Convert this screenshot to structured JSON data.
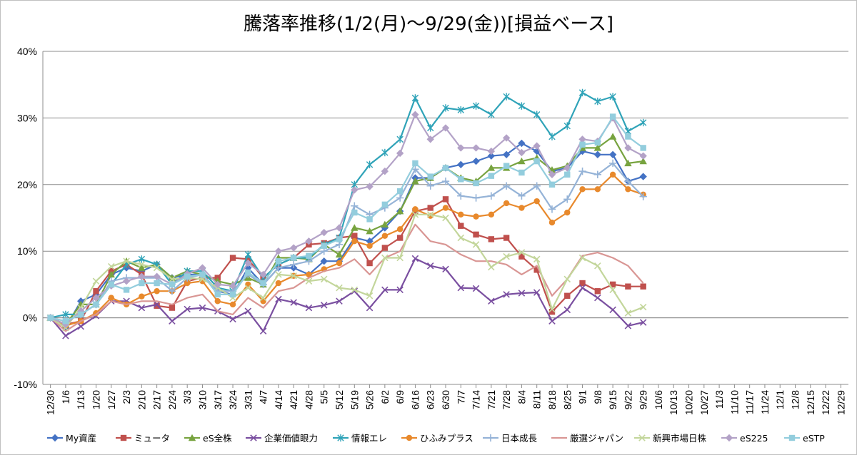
{
  "chart_data": {
    "type": "line",
    "title": "騰落率推移(1/2(月)～9/29(金))[損益ベース]",
    "xlabel": "",
    "ylabel": "",
    "ylim": [
      -0.1,
      0.4
    ],
    "yticks": [
      "40%",
      "30%",
      "20%",
      "10%",
      "0%",
      "-10%"
    ],
    "ytick_values": [
      0.4,
      0.3,
      0.2,
      0.1,
      0.0,
      -0.1
    ],
    "grid": "horizontal",
    "legend_position": "bottom",
    "xtick_labels": [
      "12/30",
      "1/6",
      "1/13",
      "1/20",
      "1/27",
      "2/3",
      "2/10",
      "2/17",
      "2/24",
      "3/3",
      "3/10",
      "3/17",
      "3/24",
      "3/31",
      "4/7",
      "4/14",
      "4/21",
      "4/28",
      "5/5",
      "5/12",
      "5/19",
      "5/26",
      "6/2",
      "6/9",
      "6/16",
      "6/23",
      "6/30",
      "7/7",
      "7/14",
      "7/21",
      "7/28",
      "8/4",
      "8/11",
      "8/18",
      "8/25",
      "9/1",
      "9/8",
      "9/15",
      "9/22",
      "9/29",
      "10/6",
      "10/13",
      "10/20",
      "10/27",
      "11/3",
      "11/10",
      "11/17",
      "11/24",
      "12/1",
      "12/8",
      "12/15",
      "12/22",
      "12/29"
    ],
    "series": [
      {
        "name": "My資産",
        "color": "#4472c4",
        "marker": "diamond",
        "values": [
          0,
          -0.015,
          0.025,
          0.035,
          0.065,
          0.075,
          0.07,
          0.08,
          0.06,
          0.065,
          0.065,
          0.04,
          0.035,
          0.075,
          0.05,
          0.075,
          0.075,
          0.065,
          0.085,
          0.085,
          0.12,
          0.115,
          0.135,
          0.16,
          0.21,
          0.21,
          0.225,
          0.23,
          0.235,
          0.243,
          0.245,
          0.262,
          0.25,
          0.22,
          0.225,
          0.25,
          0.245,
          0.245,
          0.205,
          0.212
        ]
      },
      {
        "name": "ミュータ",
        "color": "#c0504d",
        "marker": "square",
        "values": [
          0,
          -0.01,
          -0.005,
          0.04,
          0.07,
          0.08,
          0.065,
          0.018,
          0.015,
          0.055,
          0.06,
          0.06,
          0.09,
          0.088,
          0.06,
          0.08,
          0.09,
          0.11,
          0.112,
          0.12,
          0.123,
          0.082,
          0.105,
          0.12,
          0.16,
          0.165,
          0.178,
          0.138,
          0.125,
          0.118,
          0.12,
          0.092,
          0.072,
          0.009,
          0.033,
          0.052,
          0.04,
          0.05,
          0.047,
          0.047
        ]
      },
      {
        "name": "eS全株",
        "color": "#77a33f",
        "marker": "triangle",
        "values": [
          0,
          -0.01,
          0.02,
          0.02,
          0.065,
          0.085,
          0.075,
          0.08,
          0.06,
          0.07,
          0.065,
          0.055,
          0.05,
          0.06,
          0.05,
          0.09,
          0.09,
          0.088,
          0.11,
          0.095,
          0.135,
          0.13,
          0.14,
          0.16,
          0.205,
          0.21,
          0.225,
          0.21,
          0.205,
          0.225,
          0.225,
          0.235,
          0.24,
          0.222,
          0.228,
          0.255,
          0.255,
          0.272,
          0.232,
          0.235
        ]
      },
      {
        "name": "企業価値眼力",
        "color": "#7a4fa0",
        "marker": "x",
        "values": [
          0,
          -0.027,
          -0.013,
          0.003,
          0.025,
          0.025,
          0.015,
          0.02,
          -0.005,
          0.013,
          0.015,
          0.01,
          -0.002,
          0.01,
          -0.02,
          0.028,
          0.023,
          0.015,
          0.019,
          0.025,
          0.04,
          0.015,
          0.042,
          0.042,
          0.089,
          0.078,
          0.073,
          0.045,
          0.044,
          0.025,
          0.035,
          0.037,
          0.038,
          -0.005,
          0.012,
          0.045,
          0.03,
          0.012,
          -0.012,
          -0.007
        ]
      },
      {
        "name": "情報エレ",
        "color": "#2fa3b8",
        "marker": "star",
        "values": [
          0,
          0.005,
          0.005,
          0.02,
          0.05,
          0.08,
          0.088,
          0.08,
          0.05,
          0.07,
          0.07,
          0.045,
          0.04,
          0.095,
          0.06,
          0.08,
          0.09,
          0.09,
          0.11,
          0.12,
          0.2,
          0.23,
          0.248,
          0.268,
          0.33,
          0.285,
          0.315,
          0.312,
          0.318,
          0.305,
          0.332,
          0.318,
          0.305,
          0.272,
          0.288,
          0.338,
          0.325,
          0.332,
          0.28,
          0.293
        ]
      },
      {
        "name": "ひふみプラス",
        "color": "#e8892c",
        "marker": "circle",
        "values": [
          0,
          -0.012,
          -0.005,
          0.007,
          0.03,
          0.02,
          0.032,
          0.04,
          0.04,
          0.052,
          0.055,
          0.025,
          0.02,
          0.05,
          0.025,
          0.052,
          0.063,
          0.065,
          0.073,
          0.082,
          0.115,
          0.108,
          0.123,
          0.133,
          0.163,
          0.153,
          0.165,
          0.155,
          0.152,
          0.155,
          0.172,
          0.165,
          0.175,
          0.143,
          0.158,
          0.193,
          0.193,
          0.215,
          0.193,
          0.185
        ]
      },
      {
        "name": "日本成長",
        "color": "#95b3d7",
        "marker": "plus",
        "values": [
          0,
          -0.005,
          0.005,
          0.02,
          0.055,
          0.06,
          0.06,
          0.06,
          0.04,
          0.06,
          0.065,
          0.04,
          0.04,
          0.065,
          0.05,
          0.075,
          0.08,
          0.085,
          0.1,
          0.11,
          0.168,
          0.155,
          0.165,
          0.18,
          0.223,
          0.198,
          0.205,
          0.183,
          0.18,
          0.183,
          0.198,
          0.183,
          0.198,
          0.163,
          0.178,
          0.22,
          0.215,
          0.232,
          0.205,
          0.182
        ]
      },
      {
        "name": "厳選ジャパン",
        "color": "#d99694",
        "marker": "none",
        "values": [
          0,
          -0.02,
          -0.005,
          0.005,
          0.025,
          0.02,
          0.025,
          0.025,
          0.02,
          0.03,
          0.035,
          0.01,
          0.005,
          0.03,
          0.015,
          0.04,
          0.045,
          0.06,
          0.07,
          0.075,
          0.088,
          0.065,
          0.09,
          0.1,
          0.14,
          0.115,
          0.11,
          0.095,
          0.085,
          0.085,
          0.08,
          0.065,
          0.078,
          0.033,
          0.058,
          0.093,
          0.098,
          0.09,
          0.078,
          0.052
        ]
      },
      {
        "name": "新興市場日株",
        "color": "#c3d69b",
        "marker": "x",
        "values": [
          0,
          -0.015,
          0.015,
          0.055,
          0.077,
          0.085,
          0.08,
          0.075,
          0.058,
          0.06,
          0.058,
          0.045,
          0.03,
          0.045,
          0.03,
          0.065,
          0.063,
          0.055,
          0.058,
          0.045,
          0.042,
          0.033,
          0.09,
          0.09,
          0.155,
          0.155,
          0.15,
          0.12,
          0.11,
          0.076,
          0.092,
          0.098,
          0.088,
          0.013,
          0.058,
          0.09,
          0.078,
          0.042,
          0.007,
          0.016
        ]
      },
      {
        "name": "eS225",
        "color": "#b3a2c7",
        "marker": "diamond",
        "values": [
          0,
          -0.01,
          0.01,
          0.03,
          0.048,
          0.055,
          0.062,
          0.062,
          0.05,
          0.066,
          0.075,
          0.05,
          0.048,
          0.082,
          0.065,
          0.1,
          0.105,
          0.115,
          0.128,
          0.135,
          0.192,
          0.197,
          0.22,
          0.247,
          0.305,
          0.268,
          0.285,
          0.255,
          0.255,
          0.25,
          0.27,
          0.248,
          0.258,
          0.215,
          0.225,
          0.268,
          0.265,
          0.3,
          0.255,
          0.243
        ]
      },
      {
        "name": "eSTP",
        "color": "#93cddd",
        "marker": "square",
        "values": [
          0,
          -0.005,
          0.005,
          0.02,
          0.05,
          0.042,
          0.052,
          0.052,
          0.05,
          0.062,
          0.065,
          0.035,
          0.035,
          0.068,
          0.052,
          0.085,
          0.09,
          0.093,
          0.108,
          0.118,
          0.158,
          0.148,
          0.17,
          0.19,
          0.232,
          0.212,
          0.225,
          0.208,
          0.202,
          0.213,
          0.228,
          0.218,
          0.235,
          0.2,
          0.215,
          0.26,
          0.263,
          0.302,
          0.272,
          0.255
        ]
      }
    ]
  }
}
